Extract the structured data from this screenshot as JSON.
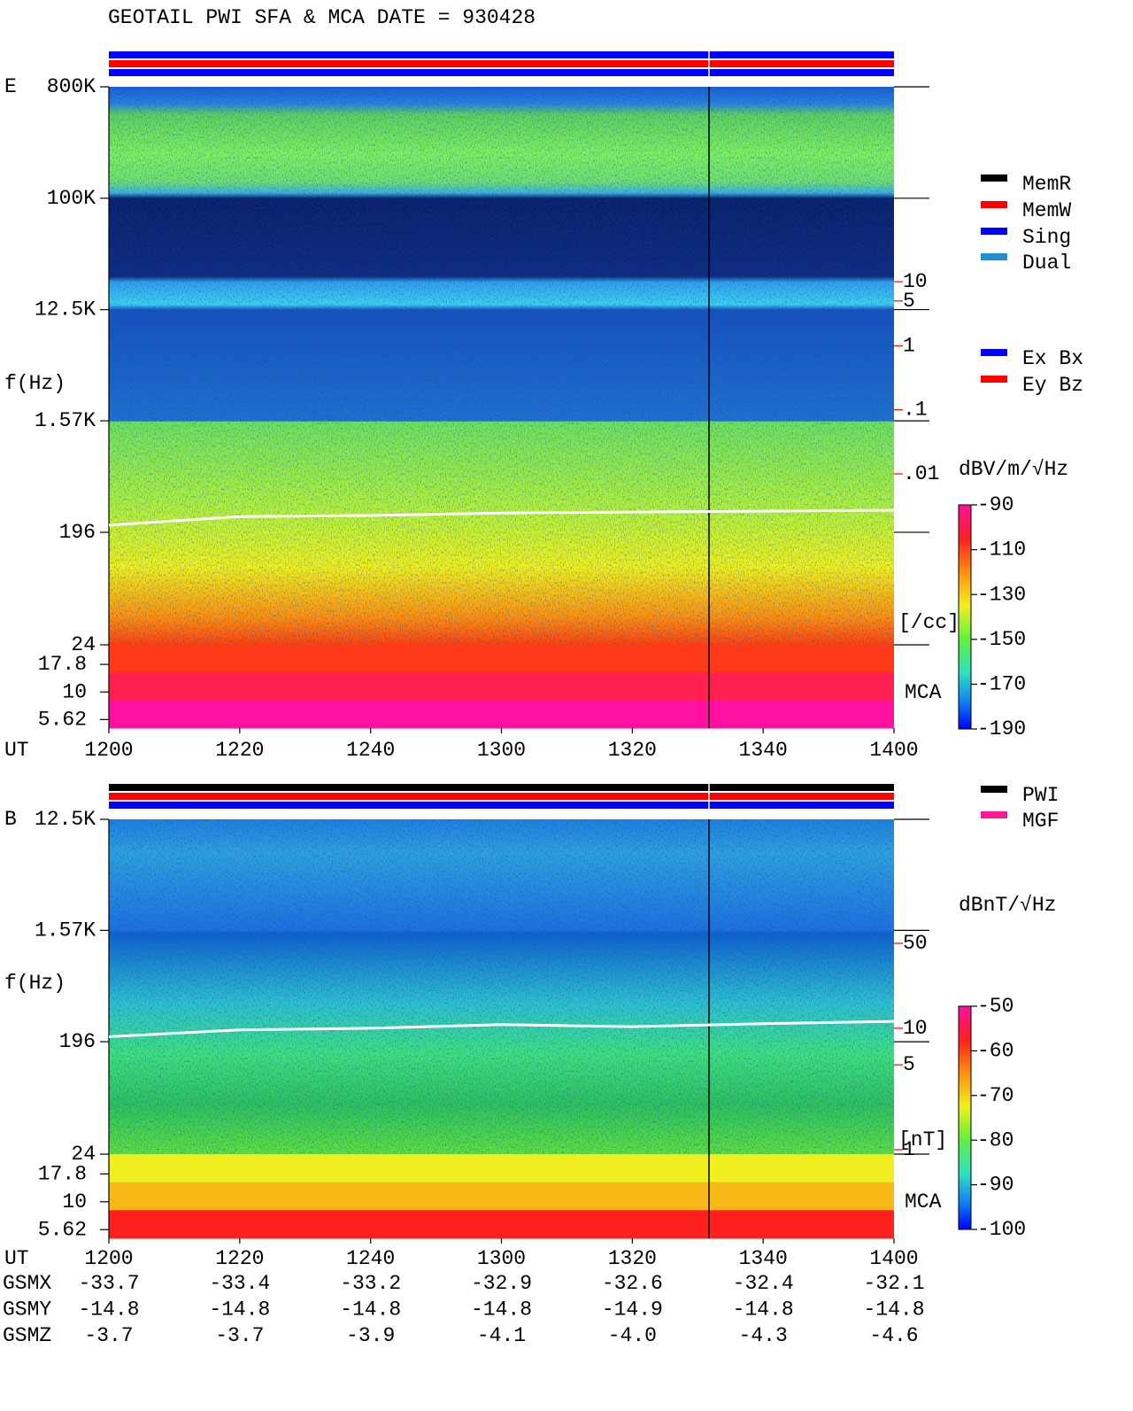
{
  "title": "GEOTAIL  PWI SFA & MCA   DATE = 930428",
  "chart_data": [
    {
      "type": "spectrogram",
      "panel": "E",
      "y_label": "f(Hz)",
      "x_label": "UT",
      "log_y": true,
      "ylim": [
        24,
        800000
      ],
      "yticks": [
        {
          "value": 800000,
          "label": "800K"
        },
        {
          "value": 100000,
          "label": "100K"
        },
        {
          "value": 12500,
          "label": "12.5K"
        },
        {
          "value": 1570,
          "label": "1.57K"
        },
        196,
        24
      ],
      "mca_ylim": [
        4.7,
        26.8
      ],
      "mca_yticks": [
        17.8,
        10,
        5.62
      ],
      "mca_label": "MCA",
      "x_labels": [
        "1200",
        "1220",
        "1240",
        "1300",
        "1320",
        "1340",
        "1400"
      ],
      "right_axis": {
        "label": "[/cc]",
        "color": "#ff0000",
        "lim": [
          0.01,
          10
        ],
        "ticks": [
          10,
          5,
          1,
          {
            "value": 0.1,
            "label": ".1"
          },
          {
            "value": 0.01,
            "label": ".01"
          }
        ]
      },
      "colorbar": {
        "label": "dBV/m/√Hz",
        "lim": [
          -190,
          -90
        ],
        "ticks": [
          -90,
          -110,
          -130,
          -150,
          -170,
          -190
        ]
      },
      "trace": {
        "axis": "y",
        "color": "#ffffff",
        "values": [
          224,
          263,
          268,
          281,
          286,
          291,
          296
        ]
      },
      "bars": [
        "#0000ff",
        "#ff0000",
        "#0000ff"
      ],
      "legend": [
        {
          "name": "MemR",
          "color": "#000000"
        },
        {
          "name": "MemW",
          "color": "#ff0000"
        },
        {
          "name": "Sing",
          "color": "#0000ff"
        },
        {
          "name": "Dual",
          "color": "#1e90d0"
        }
      ],
      "legend2": [
        {
          "name": "Ex Bx",
          "color": "#0000ff"
        },
        {
          "name": "Ey Bz",
          "color": "#ff0000"
        }
      ]
    },
    {
      "type": "spectrogram",
      "panel": "B",
      "y_label": "f(Hz)",
      "x_label": "UT",
      "log_y": true,
      "ylim": [
        24,
        12500
      ],
      "yticks": [
        {
          "value": 12500,
          "label": "12.5K"
        },
        {
          "value": 1570,
          "label": "1.57K"
        },
        196,
        24
      ],
      "mca_ylim": [
        4.7,
        26.8
      ],
      "mca_yticks": [
        17.8,
        10,
        5.62
      ],
      "mca_label": "MCA",
      "x_labels": [
        "1200",
        "1220",
        "1240",
        "1300",
        "1320",
        "1340",
        "1400"
      ],
      "right_axis": {
        "label": "[nT]",
        "color": "#ff0000",
        "lim": [
          1,
          50
        ],
        "ticks": [
          50,
          10,
          5,
          1
        ]
      },
      "colorbar": {
        "label": "dBnT/√Hz",
        "lim": [
          -100,
          -50
        ],
        "ticks": [
          -50,
          -60,
          -70,
          -80,
          -90,
          -100
        ]
      },
      "trace": {
        "axis": "right",
        "color": "#ffffff",
        "values": [
          8.5,
          9.7,
          10,
          10.7,
          10.3,
          10.9,
          11.4
        ]
      },
      "bars": [
        "#000000",
        "#ff0000",
        "#0000ff"
      ],
      "legend": [
        {
          "name": "PWI",
          "color": "#000000"
        },
        {
          "name": "MGF",
          "color": "#ff1493"
        }
      ]
    }
  ],
  "orbit": {
    "rows": [
      {
        "name": "GSMX",
        "values": [
          "-33.7",
          "-33.4",
          "-33.2",
          "-32.9",
          "-32.6",
          "-32.4",
          "-32.1"
        ]
      },
      {
        "name": "GSMY",
        "values": [
          "-14.8",
          "-14.8",
          "-14.8",
          "-14.8",
          "-14.9",
          "-14.8",
          "-14.8"
        ]
      },
      {
        "name": "GSMZ",
        "values": [
          "-3.7",
          "-3.7",
          "-3.9",
          "-4.1",
          "-4.0",
          "-4.3",
          "-4.6"
        ]
      }
    ]
  }
}
